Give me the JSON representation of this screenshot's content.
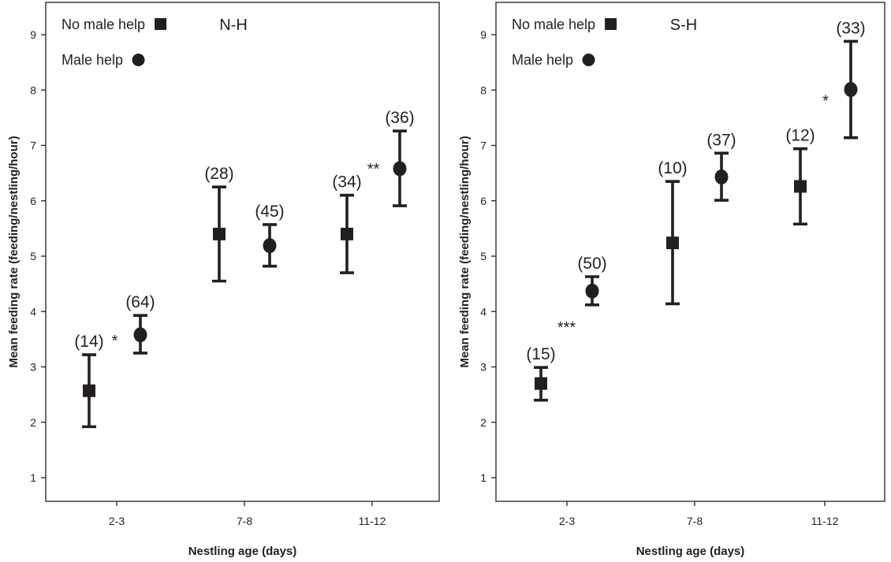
{
  "chart_data": [
    {
      "type": "scatter",
      "title": "N-H",
      "xlabel": "Nestling age (days)",
      "ylabel": "Mean feeding rate (feeding/nestling/hour)",
      "ylim": [
        0.5,
        9.5
      ],
      "y_ticks": [
        1,
        2,
        3,
        4,
        5,
        6,
        7,
        8,
        9
      ],
      "categories": [
        "2-3",
        "7-8",
        "11-12"
      ],
      "grid": false,
      "legend": "top-left",
      "series": [
        {
          "name": "No male help",
          "marker": "square",
          "values": [
            2.57,
            5.4,
            5.4
          ],
          "error_low": [
            1.92,
            4.55,
            4.7
          ],
          "error_high": [
            3.22,
            6.25,
            6.1
          ],
          "n_labels": [
            "(14)",
            "(28)",
            "(34)"
          ]
        },
        {
          "name": "Male help",
          "marker": "circle",
          "values": [
            3.58,
            5.19,
            6.58
          ],
          "error_low": [
            3.25,
            4.82,
            5.91
          ],
          "error_high": [
            3.93,
            5.57,
            7.26
          ],
          "n_labels": [
            "(64)",
            "(45)",
            "(36)"
          ]
        }
      ],
      "annotations": [
        {
          "text": "*",
          "category": "2-3"
        },
        {
          "text": "**",
          "category": "11-12"
        }
      ]
    },
    {
      "type": "scatter",
      "title": "S-H",
      "xlabel": "Nestling age (days)",
      "ylabel": "Mean feeding rate (feeding/nestling/hour)",
      "ylim": [
        0.5,
        9.5
      ],
      "y_ticks": [
        1,
        2,
        3,
        4,
        5,
        6,
        7,
        8,
        9
      ],
      "categories": [
        "2-3",
        "7-8",
        "11-12"
      ],
      "grid": false,
      "legend": "top-left",
      "series": [
        {
          "name": "No male help",
          "marker": "square",
          "values": [
            2.7,
            5.24,
            6.26
          ],
          "error_low": [
            2.4,
            4.14,
            5.58
          ],
          "error_high": [
            2.99,
            6.35,
            6.94
          ],
          "n_labels": [
            "(15)",
            "(10)",
            "(12)"
          ]
        },
        {
          "name": "Male help",
          "marker": "circle",
          "values": [
            4.37,
            6.43,
            8.01
          ],
          "error_low": [
            4.12,
            6.01,
            7.14
          ],
          "error_high": [
            4.63,
            6.86,
            8.88
          ],
          "n_labels": [
            "(50)",
            "(37)",
            "(33)"
          ]
        }
      ],
      "annotations": [
        {
          "text": "***",
          "category": "2-3"
        },
        {
          "text": "*",
          "category": "11-12"
        }
      ]
    }
  ]
}
